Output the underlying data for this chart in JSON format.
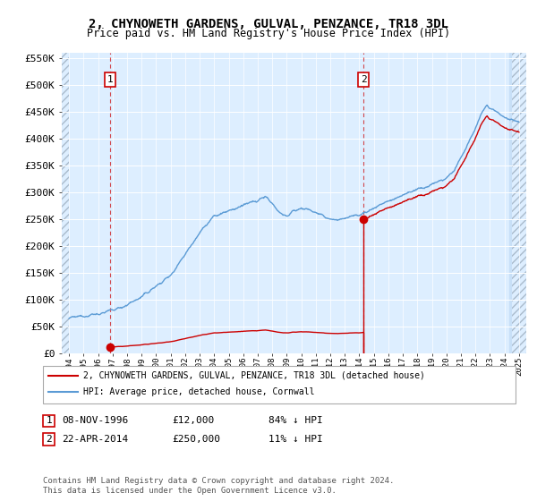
{
  "title": "2, CHYNOWETH GARDENS, GULVAL, PENZANCE, TR18 3DL",
  "subtitle": "Price paid vs. HM Land Registry's House Price Index (HPI)",
  "ylabel_ticks": [
    "£0",
    "£50K",
    "£100K",
    "£150K",
    "£200K",
    "£250K",
    "£300K",
    "£350K",
    "£400K",
    "£450K",
    "£500K",
    "£550K"
  ],
  "ytick_vals": [
    0,
    50000,
    100000,
    150000,
    200000,
    250000,
    300000,
    350000,
    400000,
    450000,
    500000,
    550000
  ],
  "sale1_x": 1996.85,
  "sale1_price": 12000,
  "sale2_x": 2014.29,
  "sale2_price": 250000,
  "legend_line1": "2, CHYNOWETH GARDENS, GULVAL, PENZANCE, TR18 3DL (detached house)",
  "legend_line2": "HPI: Average price, detached house, Cornwall",
  "footnote": "Contains HM Land Registry data © Crown copyright and database right 2024.\nThis data is licensed under the Open Government Licence v3.0.",
  "red_color": "#cc0000",
  "blue_color": "#5b9bd5",
  "grid_color": "#cccccc",
  "bg_color": "#ddeeff",
  "hatch_color": "#c8ddf0"
}
